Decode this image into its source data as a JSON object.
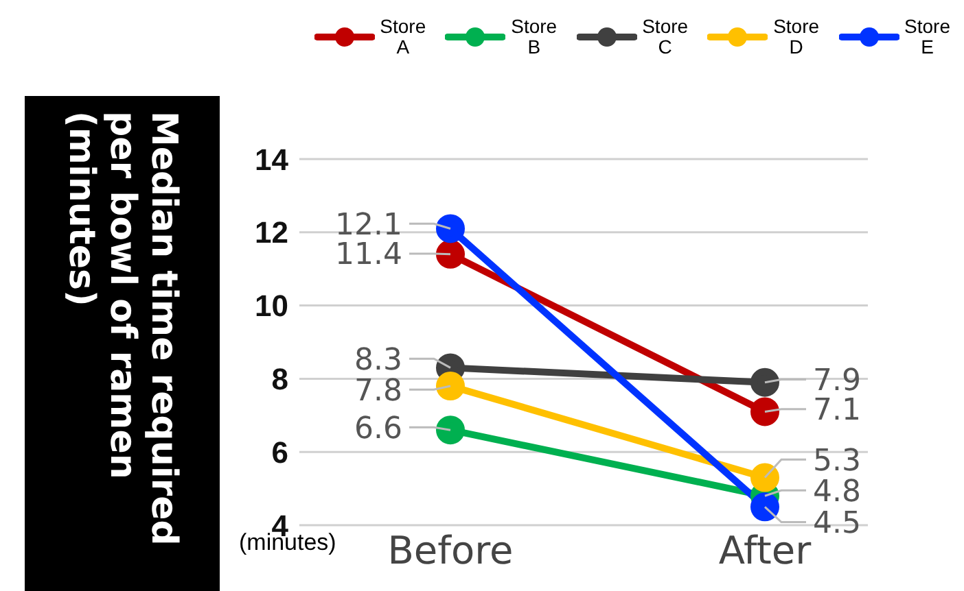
{
  "chart_data": {
    "type": "line",
    "ylabel": "Median time required per bowl of ramen (minutes)",
    "categories": [
      "Before",
      "After"
    ],
    "series": [
      {
        "name": "Store A",
        "color": "#c00000",
        "values": [
          11.4,
          7.1
        ]
      },
      {
        "name": "Store B",
        "color": "#00b050",
        "values": [
          6.6,
          4.8
        ]
      },
      {
        "name": "Store C",
        "color": "#404040",
        "values": [
          8.3,
          7.9
        ]
      },
      {
        "name": "Store D",
        "color": "#ffc000",
        "values": [
          7.8,
          5.3
        ]
      },
      {
        "name": "Store E",
        "color": "#0033ff",
        "values": [
          12.1,
          4.5
        ]
      }
    ],
    "ylim": [
      4,
      14
    ],
    "yticks": [
      4,
      6,
      8,
      10,
      12,
      14
    ],
    "grid": "y",
    "legend": "top",
    "marker": "circle",
    "line_style": "solid",
    "data_labels": true,
    "annotations": [
      "(minutes)"
    ]
  }
}
